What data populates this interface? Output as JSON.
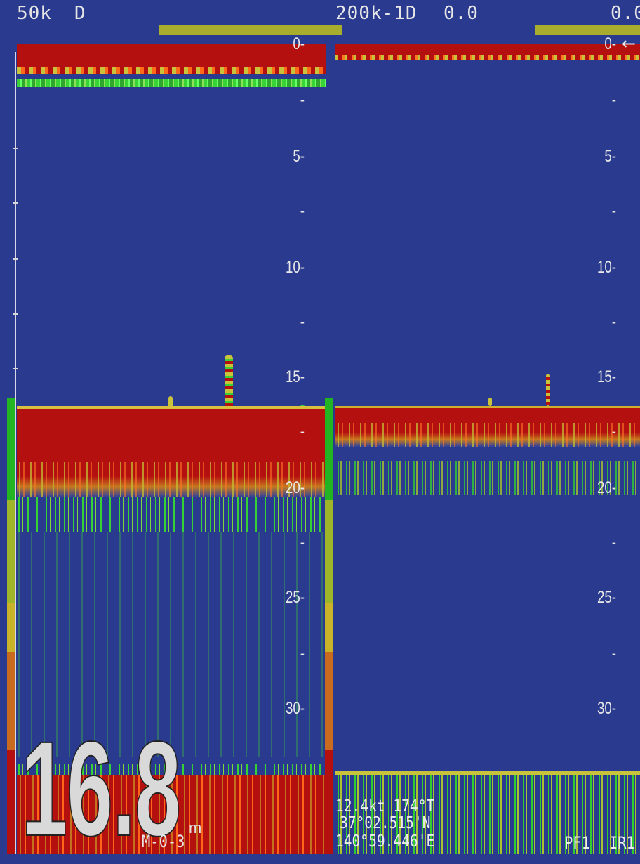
{
  "header": {
    "left_freq": "50k",
    "left_mode": "D",
    "right_freq": "200k-1D",
    "right_value": "0.0",
    "right_value2": "0.0"
  },
  "left_scale": [
    "0-",
    "-",
    "5-",
    "-",
    "10-",
    "-",
    "15-",
    "-",
    "20-",
    "-",
    "25-",
    "-",
    "30-"
  ],
  "right_scale": [
    "0-",
    "-",
    "5-",
    "-",
    "10-",
    "-",
    "15-",
    "-",
    "20-",
    "-",
    "25-",
    "-",
    "30-"
  ],
  "right_marker": "←",
  "depth_readout": {
    "value": "16.8",
    "unit": "m"
  },
  "mode_label": "M-0-3",
  "nav": {
    "speed_heading": "12.4kt 174°T",
    "latitude": "37°02.515'N",
    "longitude": "140°59.446'E"
  },
  "footer": {
    "pf": "PF1",
    "ir": "IR1"
  },
  "colors": {
    "background": "#2a3a8e",
    "echo_strong": "#b51010",
    "echo_mid": "#c9c33b",
    "echo_weak": "#37d337",
    "gain_bar": "#a9ad2e"
  }
}
